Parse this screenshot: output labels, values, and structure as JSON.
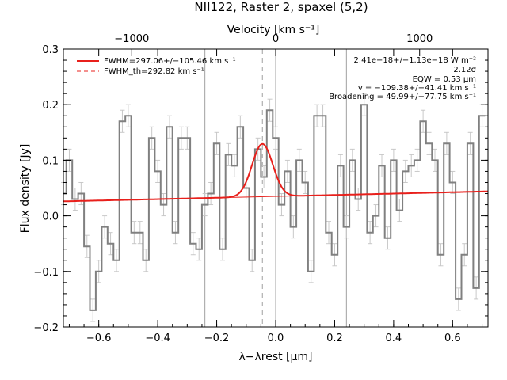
{
  "chart_data": {
    "type": "line",
    "title": "NII122, Raster 2, spaxel (5,2)",
    "xlabel": "λ−λrest [μm]",
    "ylabel": "Flux density [Jy]",
    "top_xlabel": "Velocity [km s⁻¹]",
    "xlim": [
      -0.72,
      0.72
    ],
    "ylim": [
      -0.2,
      0.3
    ],
    "x_ticks": [
      -0.6,
      -0.4,
      -0.2,
      0.0,
      0.2,
      0.4,
      0.6
    ],
    "x_tick_labels": [
      "−0.6",
      "−0.4",
      "−0.2",
      "0.0",
      "0.2",
      "0.4",
      "0.6"
    ],
    "y_ticks": [
      -0.2,
      -0.1,
      0.0,
      0.1,
      0.2,
      0.3
    ],
    "y_tick_labels": [
      "−0.2",
      "−0.1",
      "0.0",
      "0.1",
      "0.2",
      "0.3"
    ],
    "top_ticks_dlambda": [
      -0.4882,
      0.0,
      0.4882
    ],
    "top_tick_labels": [
      "−1000",
      "0",
      "1000"
    ],
    "vertical_lines": [
      -0.24,
      0.0,
      0.24
    ],
    "dashed_line_x": -0.045,
    "legend": [
      {
        "label": "FWHM=297.06+/−105.46 km s⁻¹",
        "style": "solid"
      },
      {
        "label": "FWHM_th=292.82 km s⁻¹",
        "style": "dashed"
      }
    ],
    "annotations": [
      "2.41e−18+/−1.13e−18 W m⁻²",
      "2.12σ",
      "EQW = 0.53 μm",
      "v = −109.38+/−41.41 km s⁻¹",
      "Broadening = 49.99+/−77.75 km s⁻¹"
    ],
    "spectrum": {
      "x": [
        -0.72,
        -0.7,
        -0.68,
        -0.66,
        -0.64,
        -0.62,
        -0.6,
        -0.58,
        -0.56,
        -0.54,
        -0.52,
        -0.5,
        -0.48,
        -0.46,
        -0.44,
        -0.42,
        -0.4,
        -0.38,
        -0.36,
        -0.34,
        -0.32,
        -0.3,
        -0.28,
        -0.26,
        -0.24,
        -0.22,
        -0.2,
        -0.18,
        -0.16,
        -0.14,
        -0.12,
        -0.1,
        -0.08,
        -0.06,
        -0.04,
        -0.02,
        0.0,
        0.02,
        0.04,
        0.06,
        0.08,
        0.1,
        0.12,
        0.14,
        0.16,
        0.18,
        0.2,
        0.22,
        0.24,
        0.26,
        0.28,
        0.3,
        0.32,
        0.34,
        0.36,
        0.38,
        0.4,
        0.42,
        0.44,
        0.46,
        0.48,
        0.5,
        0.52,
        0.54,
        0.56,
        0.58,
        0.6,
        0.62,
        0.64,
        0.66,
        0.68,
        0.7
      ],
      "y": [
        0.04,
        0.1,
        0.03,
        0.04,
        -0.055,
        -0.17,
        -0.1,
        -0.02,
        -0.05,
        -0.08,
        0.17,
        0.18,
        -0.03,
        -0.03,
        -0.08,
        0.14,
        0.08,
        0.02,
        0.16,
        -0.03,
        0.14,
        0.14,
        -0.05,
        -0.06,
        0.02,
        0.04,
        0.13,
        -0.06,
        0.11,
        0.09,
        0.16,
        0.05,
        -0.08,
        0.12,
        0.07,
        0.19,
        0.14,
        0.02,
        0.08,
        -0.02,
        0.1,
        0.06,
        -0.1,
        0.18,
        0.18,
        -0.03,
        -0.07,
        0.09,
        -0.02,
        0.1,
        0.03,
        0.2,
        -0.03,
        0.0,
        0.09,
        -0.04,
        0.1,
        0.01,
        0.08,
        0.09,
        0.1,
        0.17,
        0.13,
        0.1,
        -0.07,
        0.13,
        0.06,
        -0.15,
        -0.07,
        0.13,
        -0.13,
        0.18
      ],
      "err": [
        0.02,
        0.02,
        0.02,
        0.02,
        0.02,
        0.02,
        0.02,
        0.02,
        0.02,
        0.02,
        0.02,
        0.02,
        0.02,
        0.02,
        0.02,
        0.02,
        0.02,
        0.02,
        0.02,
        0.02,
        0.02,
        0.02,
        0.02,
        0.02,
        0.02,
        0.02,
        0.02,
        0.02,
        0.02,
        0.02,
        0.02,
        0.02,
        0.02,
        0.02,
        0.02,
        0.02,
        0.02,
        0.02,
        0.02,
        0.02,
        0.02,
        0.02,
        0.02,
        0.02,
        0.02,
        0.02,
        0.02,
        0.02,
        0.02,
        0.02,
        0.02,
        0.02,
        0.02,
        0.02,
        0.02,
        0.02,
        0.02,
        0.02,
        0.02,
        0.02,
        0.02,
        0.02,
        0.02,
        0.02,
        0.02,
        0.02,
        0.02,
        0.02,
        0.02,
        0.02,
        0.02,
        0.02
      ]
    },
    "continuum": {
      "x": [
        -0.72,
        0.72
      ],
      "y": [
        0.026,
        0.044
      ]
    },
    "gaussian": {
      "center": -0.045,
      "amplitude": 0.095,
      "sigma": 0.035
    },
    "colors": {
      "fit": "#e8201c",
      "spectrum": "#808080",
      "errbar": "#c8c8c8",
      "refline": "#a0a0a0"
    }
  }
}
